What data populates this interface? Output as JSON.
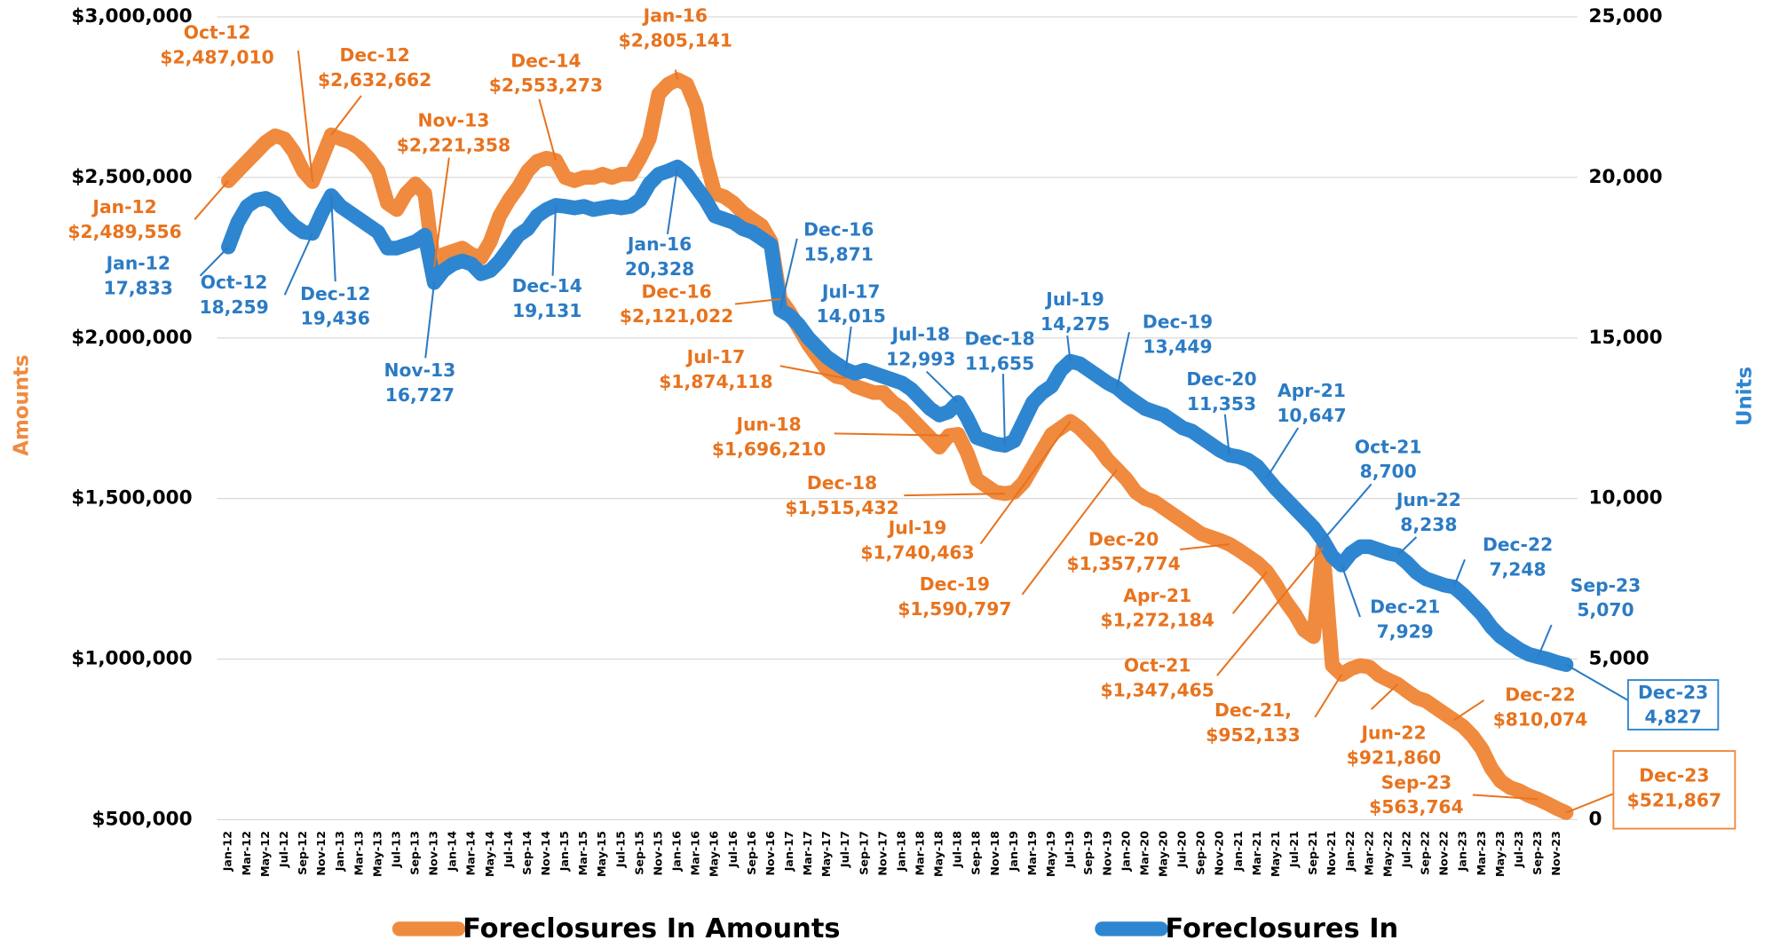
{
  "chart_data": {
    "type": "line",
    "y_label": "Amounts",
    "y2_label": "Units",
    "ylim": [
      500000,
      3000000
    ],
    "yticks": [
      {
        "value": 500000,
        "label": "$500,000"
      },
      {
        "value": 1000000,
        "label": "$1,000,000"
      },
      {
        "value": 1500000,
        "label": "$1,500,000"
      },
      {
        "value": 2000000,
        "label": "$2,000,000"
      },
      {
        "value": 2500000,
        "label": "$2,500,000"
      },
      {
        "value": 3000000,
        "label": "$3,000,000"
      }
    ],
    "y2lim": [
      0,
      25000
    ],
    "y2ticks": [
      0,
      {
        "value": 5000,
        "label": "5,000"
      },
      {
        "value": 10000,
        "label": "10,000"
      },
      {
        "value": 15000,
        "label": "15,000"
      },
      {
        "value": 20000,
        "label": "20,000"
      },
      {
        "value": 25000,
        "label": "25,000"
      }
    ],
    "grid": true,
    "legend": "bottom",
    "categories": [
      "Jan-12",
      null,
      "Mar-12",
      null,
      "May-12",
      null,
      "Jul-12",
      null,
      "Sep-12",
      null,
      "Nov-12",
      null,
      "Jan-13",
      null,
      "Mar-13",
      null,
      "May-13",
      null,
      "Jul-13",
      null,
      "Sep-13",
      null,
      "Nov-13",
      null,
      "Jan-14",
      null,
      "Mar-14",
      null,
      "May-14",
      null,
      "Jul-14",
      null,
      "Sep-14",
      null,
      "Nov-14",
      null,
      "Jan-15",
      null,
      "Mar-15",
      null,
      "May-15",
      null,
      "Jul-15",
      null,
      "Sep-15",
      null,
      "Nov-15",
      null,
      "Jan-16",
      null,
      "Mar-16",
      null,
      "May-16",
      null,
      "Jul-16",
      null,
      "Sep-16",
      null,
      "Nov-16",
      null,
      "Jan-17",
      null,
      "Mar-17",
      null,
      "May-17",
      null,
      "Jul-17",
      null,
      "Sep-17",
      null,
      "Nov-17",
      null,
      "Jan-18",
      null,
      "Mar-18",
      null,
      "May-18",
      null,
      "Jul-18",
      null,
      "Sep-18",
      null,
      "Nov-18",
      null,
      "Jan-19",
      null,
      "Mar-19",
      null,
      "May-19",
      null,
      "Jul-19",
      null,
      "Sep-19",
      null,
      "Nov-19",
      null,
      "Jan-20",
      null,
      "Mar-20",
      null,
      "May-20",
      null,
      "Jul-20",
      null,
      "Sep-20",
      null,
      "Nov-20",
      null,
      "Jan-21",
      null,
      "Mar-21",
      null,
      "May-21",
      null,
      "Jul-21",
      null,
      "Sep-21",
      null,
      "Nov-21",
      null,
      "Jan-22",
      null,
      "Mar-22",
      null,
      "May-22",
      null,
      "Jul-22",
      null,
      "Sep-22",
      null,
      "Nov-22",
      null,
      "Jan-23",
      null,
      "Mar-23",
      null,
      "May-23",
      null,
      "Jul-23",
      null,
      "Sep-23",
      null,
      "Nov-23",
      null
    ],
    "series": [
      {
        "name": "Foreclosures In Amounts",
        "color": "#F08A3E",
        "axis": "y",
        "values": [
          2489556,
          2520000,
          2550000,
          2580000,
          2610000,
          2630000,
          2620000,
          2580000,
          2520000,
          2487010,
          2560000,
          2632662,
          2620000,
          2610000,
          2590000,
          2560000,
          2520000,
          2420000,
          2400000,
          2450000,
          2480000,
          2450000,
          2221358,
          2260000,
          2270000,
          2280000,
          2260000,
          2250000,
          2300000,
          2380000,
          2430000,
          2470000,
          2520000,
          2550000,
          2560000,
          2553273,
          2500000,
          2490000,
          2500000,
          2500000,
          2510000,
          2500000,
          2510000,
          2510000,
          2560000,
          2620000,
          2760000,
          2790000,
          2805141,
          2790000,
          2720000,
          2560000,
          2450000,
          2440000,
          2420000,
          2390000,
          2370000,
          2350000,
          2300000,
          2121022,
          2080000,
          2030000,
          1980000,
          1940000,
          1900000,
          1880000,
          1874118,
          1850000,
          1840000,
          1830000,
          1830000,
          1800000,
          1780000,
          1750000,
          1720000,
          1690000,
          1660000,
          1696210,
          1700000,
          1640000,
          1560000,
          1540000,
          1520000,
          1515432,
          1520000,
          1550000,
          1600000,
          1650000,
          1700000,
          1720000,
          1740463,
          1720000,
          1690000,
          1660000,
          1620000,
          1590797,
          1560000,
          1520000,
          1500000,
          1490000,
          1470000,
          1450000,
          1430000,
          1410000,
          1390000,
          1380000,
          1370000,
          1357774,
          1340000,
          1320000,
          1300000,
          1272184,
          1230000,
          1180000,
          1140000,
          1090000,
          1070000,
          1347465,
          980000,
          952133,
          970000,
          980000,
          975000,
          950000,
          935000,
          921860,
          900000,
          880000,
          870000,
          850000,
          830000,
          810074,
          790000,
          760000,
          720000,
          660000,
          620000,
          600000,
          590000,
          575000,
          563764,
          550000,
          535000,
          521867
        ],
        "value_labels": [
          "$2,489,556",
          null,
          null,
          null,
          null,
          null,
          null,
          null,
          null,
          "$2,487,010",
          null,
          "$2,632,662",
          null,
          null,
          null,
          null,
          null,
          null,
          null,
          null,
          null,
          null,
          "$2,221,358",
          null,
          null,
          null,
          null,
          null,
          null,
          null,
          null,
          null,
          null,
          null,
          null,
          "$2,553,273",
          null,
          null,
          null,
          null,
          null,
          null,
          null,
          null,
          null,
          null,
          null,
          null,
          "$2,805,141",
          null,
          null,
          null,
          null,
          null,
          null,
          null,
          null,
          null,
          null,
          "$2,121,022",
          null,
          null,
          null,
          null,
          null,
          null,
          "$1,874,118",
          null,
          null,
          null,
          null,
          null,
          null,
          null,
          null,
          null,
          null,
          "$1,696,210",
          null,
          null,
          null,
          null,
          null,
          "$1,515,432",
          null,
          null,
          null,
          null,
          null,
          null,
          "$1,740,463",
          null,
          null,
          null,
          null,
          "$1,590,797",
          null,
          null,
          null,
          null,
          null,
          null,
          null,
          null,
          null,
          null,
          null,
          "$1,357,774",
          null,
          null,
          null,
          "$1,272,184",
          null,
          null,
          null,
          null,
          null,
          "$1,347,465",
          null,
          "$952,133",
          null,
          null,
          null,
          null,
          null,
          "$921,860",
          null,
          null,
          null,
          null,
          null,
          "$810,074",
          null,
          null,
          null,
          null,
          null,
          null,
          null,
          null,
          "$563,764",
          null,
          null,
          "$521,867"
        ],
        "label_titles": [
          "Jan-12",
          null,
          null,
          null,
          null,
          null,
          null,
          null,
          null,
          "Oct-12",
          null,
          "Dec-12",
          null,
          null,
          null,
          null,
          null,
          null,
          null,
          null,
          null,
          null,
          "Nov-13",
          null,
          null,
          null,
          null,
          null,
          null,
          null,
          null,
          null,
          null,
          null,
          null,
          "Dec-14",
          null,
          null,
          null,
          null,
          null,
          null,
          null,
          null,
          null,
          null,
          null,
          null,
          "Jan-16",
          null,
          null,
          null,
          null,
          null,
          null,
          null,
          null,
          null,
          null,
          "Dec-16",
          null,
          null,
          null,
          null,
          null,
          null,
          "Jul-17",
          null,
          null,
          null,
          null,
          null,
          null,
          null,
          null,
          null,
          null,
          "Jun-18",
          null,
          null,
          null,
          null,
          null,
          "Dec-18",
          null,
          null,
          null,
          null,
          null,
          null,
          "Jul-19",
          null,
          null,
          null,
          null,
          "Dec-19",
          null,
          null,
          null,
          null,
          null,
          null,
          null,
          null,
          null,
          null,
          null,
          "Dec-20",
          null,
          null,
          null,
          "Apr-21",
          null,
          null,
          null,
          null,
          null,
          "Oct-21",
          null,
          "Dec-21,",
          null,
          null,
          null,
          null,
          null,
          "Jun-22",
          null,
          null,
          null,
          null,
          null,
          "Dec-22",
          null,
          null,
          null,
          null,
          null,
          null,
          null,
          null,
          "Sep-23",
          null,
          null,
          "Dec-23"
        ]
      },
      {
        "name": "Foreclosures In",
        "color": "#2E86D1",
        "axis": "y2",
        "values": [
          17833,
          18600,
          19100,
          19300,
          19350,
          19200,
          18800,
          18500,
          18300,
          18259,
          18900,
          19436,
          19100,
          18900,
          18700,
          18500,
          18300,
          17800,
          17800,
          17900,
          18000,
          18200,
          16727,
          17100,
          17300,
          17400,
          17300,
          17000,
          17100,
          17400,
          17800,
          18200,
          18400,
          18800,
          19000,
          19131,
          19100,
          19050,
          19100,
          19000,
          19050,
          19100,
          19050,
          19100,
          19300,
          19800,
          20100,
          20200,
          20328,
          20100,
          19700,
          19300,
          18800,
          18700,
          18600,
          18400,
          18300,
          18100,
          17900,
          15871,
          15700,
          15400,
          15000,
          14700,
          14400,
          14200,
          14015,
          13900,
          14000,
          13900,
          13800,
          13700,
          13600,
          13400,
          13100,
          12800,
          12600,
          12700,
          12993,
          12500,
          11900,
          11800,
          11700,
          11655,
          11800,
          12400,
          13000,
          13300,
          13500,
          14000,
          14275,
          14200,
          14000,
          13800,
          13600,
          13449,
          13200,
          13000,
          12800,
          12700,
          12600,
          12400,
          12200,
          12100,
          11900,
          11700,
          11500,
          11353,
          11300,
          11200,
          11000,
          10647,
          10300,
          10000,
          9700,
          9400,
          9100,
          8700,
          8200,
          7929,
          8300,
          8500,
          8500,
          8400,
          8300,
          8238,
          8000,
          7700,
          7500,
          7400,
          7300,
          7248,
          7000,
          6700,
          6400,
          6000,
          5700,
          5500,
          5300,
          5150,
          5070,
          5000,
          4900,
          4827
        ],
        "value_labels": [
          "17,833",
          null,
          null,
          null,
          null,
          null,
          null,
          null,
          null,
          "18,259",
          null,
          "19,436",
          null,
          null,
          null,
          null,
          null,
          null,
          null,
          null,
          null,
          null,
          "16,727",
          null,
          null,
          null,
          null,
          null,
          null,
          null,
          null,
          null,
          null,
          null,
          null,
          "19,131",
          null,
          null,
          null,
          null,
          null,
          null,
          null,
          null,
          null,
          null,
          null,
          null,
          "20,328",
          null,
          null,
          null,
          null,
          null,
          null,
          null,
          null,
          null,
          null,
          "15,871",
          null,
          null,
          null,
          null,
          null,
          null,
          "14,015",
          null,
          null,
          null,
          null,
          null,
          null,
          null,
          null,
          null,
          null,
          null,
          "12,993",
          null,
          null,
          null,
          null,
          "11,655",
          null,
          null,
          null,
          null,
          null,
          null,
          "14,275",
          null,
          null,
          null,
          null,
          "13,449",
          null,
          null,
          null,
          null,
          null,
          null,
          null,
          null,
          null,
          null,
          null,
          "11,353",
          null,
          null,
          null,
          "10,647",
          null,
          null,
          null,
          null,
          null,
          "8,700",
          null,
          "7,929",
          null,
          null,
          null,
          null,
          null,
          "8,238",
          null,
          null,
          null,
          null,
          null,
          "7,248",
          null,
          null,
          null,
          null,
          null,
          null,
          null,
          null,
          "5,070",
          null,
          null,
          "4,827"
        ],
        "label_titles": [
          "Jan-12",
          null,
          null,
          null,
          null,
          null,
          null,
          null,
          null,
          "Oct-12",
          null,
          "Dec-12",
          null,
          null,
          null,
          null,
          null,
          null,
          null,
          null,
          null,
          null,
          "Nov-13",
          null,
          null,
          null,
          null,
          null,
          null,
          null,
          null,
          null,
          null,
          null,
          null,
          "Dec-14",
          null,
          null,
          null,
          null,
          null,
          null,
          null,
          null,
          null,
          null,
          null,
          null,
          "Jan-16",
          null,
          null,
          null,
          null,
          null,
          null,
          null,
          null,
          null,
          null,
          "Dec-16",
          null,
          null,
          null,
          null,
          null,
          null,
          "Jul-17",
          null,
          null,
          null,
          null,
          null,
          null,
          null,
          null,
          null,
          null,
          null,
          "Jul-18",
          null,
          null,
          null,
          null,
          "Dec-18",
          null,
          null,
          null,
          null,
          null,
          null,
          "Jul-19",
          null,
          null,
          null,
          null,
          "Dec-19",
          null,
          null,
          null,
          null,
          null,
          null,
          null,
          null,
          null,
          null,
          null,
          "Dec-20",
          null,
          null,
          null,
          "Apr-21",
          null,
          null,
          null,
          null,
          null,
          "Oct-21",
          null,
          "Dec-21",
          null,
          null,
          null,
          null,
          null,
          "Jun-22",
          null,
          null,
          null,
          null,
          null,
          "Dec-22",
          null,
          null,
          null,
          null,
          null,
          null,
          null,
          null,
          "Sep-23",
          null,
          null,
          "Dec-23"
        ]
      }
    ]
  }
}
